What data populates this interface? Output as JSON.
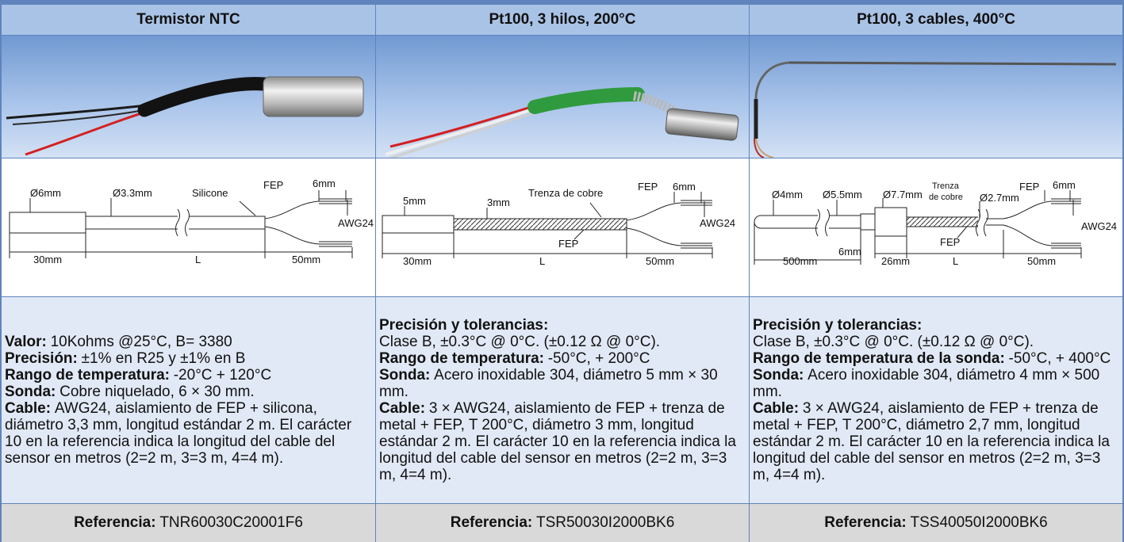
{
  "columns": [
    {
      "title": "Termistor NTC",
      "diagram_labels": [
        "Ø6mm",
        "Ø3.3mm",
        "Silicone",
        "FEP",
        "6mm",
        "AWG24",
        "30mm",
        "L",
        "50mm"
      ],
      "specs": [
        {
          "label": "Valor:",
          "text": "10Kohms @25°C, B= 3380"
        },
        {
          "label": "Precisión:",
          "text": "±1% en R25 y ±1% en B"
        },
        {
          "label": "Rango de temperatura:",
          "text": "-20°C + 120°C"
        },
        {
          "label": "Sonda:",
          "text": "Cobre niquelado, 6 × 30 mm."
        },
        {
          "label": "Cable:",
          "text": "AWG24, aislamiento de FEP + silicona, diámetro 3,3 mm, longitud estándar 2 m. El carácter 10 en la referencia indica la longitud del cable del sensor en metros (2=2 m, 3=3 m, 4=4 m)."
        }
      ],
      "reference": {
        "label": "Referencia:",
        "value": "TNR60030C20001F6"
      }
    },
    {
      "title": "Pt100, 3 hilos, 200°C",
      "diagram_labels": [
        "5mm",
        "3mm",
        "Trenza de cobre",
        "FEP",
        "6mm",
        "AWG24",
        "FEP",
        "30mm",
        "L",
        "50mm"
      ],
      "specs": [
        {
          "label": "Precisión y tolerancias:"
        },
        {
          "text": "Clase B, ±0.3°C @ 0°C. (±0.12 Ω @ 0°C)."
        },
        {
          "label": "Rango de temperatura:",
          "text": "-50°C, + 200°C"
        },
        {
          "label": "Sonda:",
          "text": "Acero inoxidable 304, diámetro 5 mm × 30 mm."
        },
        {
          "label": "Cable:",
          "text": "3 × AWG24, aislamiento de FEP + trenza de metal + FEP, T 200°C, diámetro 3 mm, longitud estándar 2 m. El carácter 10 en la referencia indica la longitud del cable del sensor en metros (2=2 m, 3=3 m, 4=4 m)."
        }
      ],
      "reference": {
        "label": "Referencia:",
        "value": "TSR50030I2000BK6"
      }
    },
    {
      "title": "Pt100, 3 cables, 400°C",
      "diagram_labels": [
        "Ø4mm",
        "Ø5.5mm",
        "Ø7.7mm",
        "Trenza",
        "de cobre",
        "Ø2.7mm",
        "FEP",
        "6mm",
        "AWG24",
        "FEP",
        "500mm",
        "6mm",
        "26mm",
        "L",
        "50mm"
      ],
      "specs": [
        {
          "label": "Precisión y tolerancias:"
        },
        {
          "text": "Clase B, ±0.3°C @ 0°C. (±0.12 Ω @ 0°C)."
        },
        {
          "label": "Rango de temperatura de la sonda:",
          "text": "-50°C, + 400°C"
        },
        {
          "label": "Sonda:",
          "text": "Acero inoxidable 304, diámetro 4 mm × 500 mm."
        },
        {
          "label": "Cable:",
          "text": "3 × AWG24, aislamiento de FEP + trenza de metal + FEP, T 200°C, diámetro 2,7 mm, longitud estándar 2 m. El carácter 10 en la referencia indica la longitud del cable del sensor en metros (2=2 m, 3=3 m, 4=4 m)."
        }
      ],
      "reference": {
        "label": "Referencia:",
        "value": "TSS40050I2000BK6"
      }
    }
  ]
}
